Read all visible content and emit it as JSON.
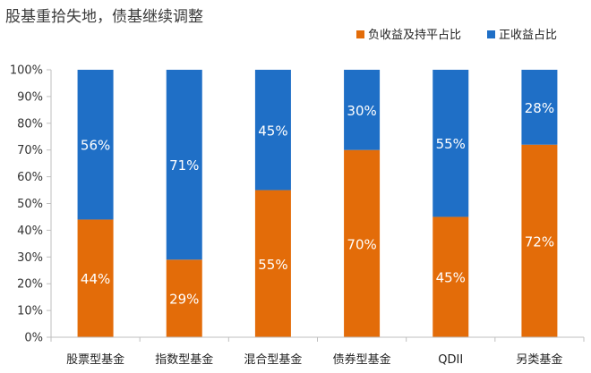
{
  "chart_data": {
    "type": "bar",
    "stacked": true,
    "title": "股基重拾失地，债基继续调整",
    "categories": [
      "股票型基金",
      "指数型基金",
      "混合型基金",
      "债券型基金",
      "QDII",
      "另类基金"
    ],
    "series": [
      {
        "name": "负收益及持平占比",
        "color": "#e36c09",
        "values": [
          44,
          29,
          55,
          70,
          45,
          72
        ],
        "labels": [
          "44%",
          "29%",
          "55%",
          "70%",
          "45%",
          "72%"
        ]
      },
      {
        "name": "正收益占比",
        "color": "#1f6fc6",
        "values": [
          56,
          71,
          45,
          30,
          55,
          28
        ],
        "labels": [
          "56%",
          "71%",
          "45%",
          "30%",
          "55%",
          "28%"
        ]
      }
    ],
    "ylim": [
      0,
      100
    ],
    "yticks": [
      0,
      10,
      20,
      30,
      40,
      50,
      60,
      70,
      80,
      90,
      100
    ],
    "ytick_labels": [
      "0%",
      "10%",
      "20%",
      "30%",
      "40%",
      "50%",
      "60%",
      "70%",
      "80%",
      "90%",
      "100%"
    ],
    "legend_position": "top-right",
    "grid": false
  }
}
